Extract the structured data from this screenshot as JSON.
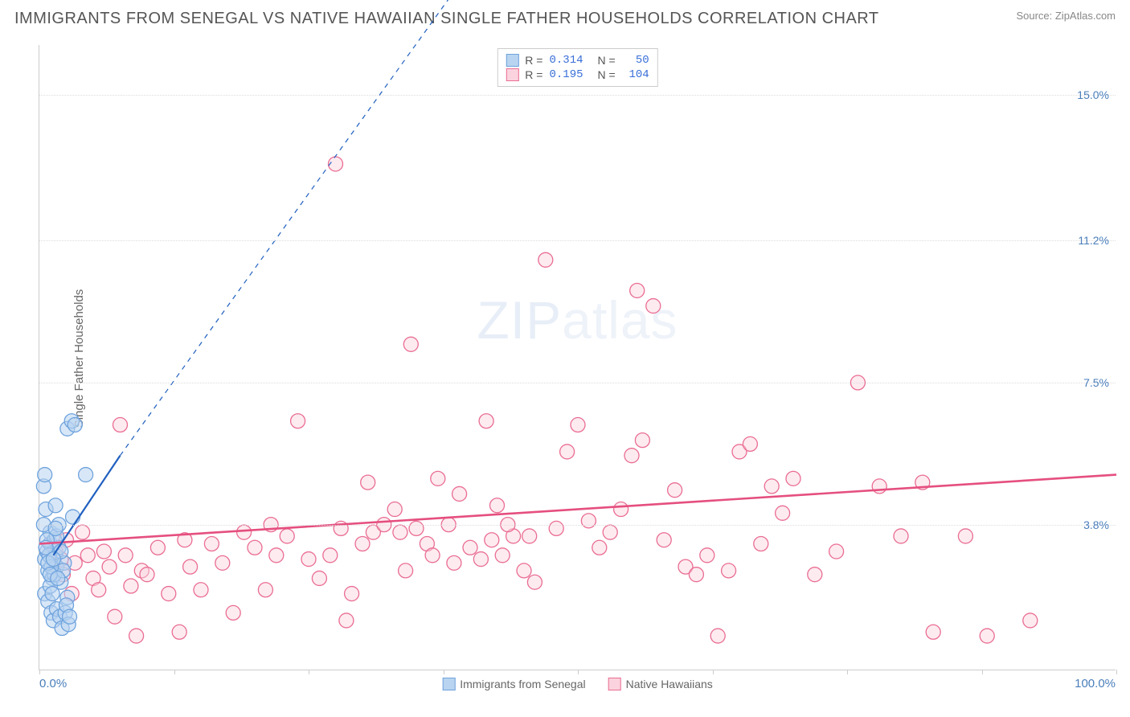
{
  "header": {
    "title": "IMMIGRANTS FROM SENEGAL VS NATIVE HAWAIIAN SINGLE FATHER HOUSEHOLDS CORRELATION CHART",
    "source": "Source: ZipAtlas.com"
  },
  "ylabel": "Single Father Households",
  "watermark": {
    "bold": "ZIP",
    "thin": "atlas"
  },
  "chart": {
    "type": "scatter",
    "background_color": "#ffffff",
    "grid_color": "#dddddd",
    "axis_color": "#cccccc",
    "tick_label_color": "#4a7ebb",
    "xlim": [
      0,
      100
    ],
    "ylim": [
      0,
      16.3
    ],
    "x_min_label": "0.0%",
    "x_max_label": "100.0%",
    "xtick_positions": [
      0,
      12.5,
      25,
      37.5,
      50,
      62.5,
      75,
      87.5,
      100
    ],
    "ytick_labels": [
      {
        "value": 3.8,
        "label": "3.8%"
      },
      {
        "value": 7.5,
        "label": "7.5%"
      },
      {
        "value": 11.2,
        "label": "11.2%"
      },
      {
        "value": 15.0,
        "label": "15.0%"
      }
    ],
    "marker_radius": 9,
    "marker_stroke_width": 1.3
  },
  "series": {
    "blue": {
      "name": "Immigrants from Senegal",
      "fill": "#b8d4f0",
      "stroke": "#6fa3dd",
      "fill_opacity": 0.55,
      "R": "0.314",
      "N": "50",
      "trend": {
        "x1": 1.3,
        "y1": 3.0,
        "x2": 7.5,
        "y2": 5.6,
        "solid_color": "#1f5fbf",
        "solid_width": 2.2,
        "dash_x2": 38,
        "dash_y2": 17.5,
        "dash": "6 6"
      },
      "points": [
        [
          0.5,
          2.9
        ],
        [
          0.7,
          3.1
        ],
        [
          0.8,
          2.6
        ],
        [
          1.0,
          3.3
        ],
        [
          1.2,
          2.4
        ],
        [
          1.0,
          3.6
        ],
        [
          1.5,
          3.0
        ],
        [
          1.4,
          3.4
        ],
        [
          1.6,
          2.7
        ],
        [
          1.8,
          3.2
        ],
        [
          0.6,
          4.2
        ],
        [
          0.5,
          2.0
        ],
        [
          0.8,
          1.8
        ],
        [
          1.1,
          1.5
        ],
        [
          1.3,
          1.3
        ],
        [
          1.6,
          1.6
        ],
        [
          1.9,
          1.4
        ],
        [
          2.1,
          1.1
        ],
        [
          2.4,
          1.5
        ],
        [
          2.7,
          1.2
        ],
        [
          2.0,
          2.3
        ],
        [
          2.3,
          2.8
        ],
        [
          2.6,
          1.9
        ],
        [
          0.4,
          4.8
        ],
        [
          0.5,
          5.1
        ],
        [
          2.6,
          6.3
        ],
        [
          3.0,
          6.5
        ],
        [
          3.3,
          6.4
        ],
        [
          4.3,
          5.1
        ],
        [
          1.5,
          4.3
        ],
        [
          1.0,
          2.2
        ],
        [
          1.2,
          2.0
        ],
        [
          1.4,
          2.5
        ],
        [
          1.6,
          3.5
        ],
        [
          1.8,
          3.8
        ],
        [
          2.0,
          3.1
        ],
        [
          2.2,
          2.6
        ],
        [
          0.7,
          3.4
        ],
        [
          0.9,
          3.0
        ],
        [
          1.1,
          2.7
        ],
        [
          0.4,
          3.8
        ],
        [
          0.6,
          3.2
        ],
        [
          0.8,
          2.8
        ],
        [
          1.0,
          2.5
        ],
        [
          1.3,
          2.9
        ],
        [
          1.5,
          3.7
        ],
        [
          1.7,
          2.4
        ],
        [
          2.5,
          1.7
        ],
        [
          2.8,
          1.4
        ],
        [
          3.1,
          4.0
        ]
      ]
    },
    "pink": {
      "name": "Native Hawaiians",
      "fill": "#fbd3de",
      "stroke": "#ea6d93",
      "fill_opacity": 0.45,
      "R": "0.195",
      "N": "104",
      "trend": {
        "x1": 0,
        "y1": 3.3,
        "x2": 100,
        "y2": 5.1,
        "solid_color": "#e54f7f",
        "solid_width": 2.6
      },
      "points": [
        [
          1.0,
          3.3
        ],
        [
          1.5,
          3.1
        ],
        [
          2.0,
          2.9
        ],
        [
          2.2,
          2.5
        ],
        [
          2.5,
          3.4
        ],
        [
          3.0,
          2.0
        ],
        [
          3.3,
          2.8
        ],
        [
          4.0,
          3.6
        ],
        [
          4.5,
          3.0
        ],
        [
          5.0,
          2.4
        ],
        [
          5.5,
          2.1
        ],
        [
          6.0,
          3.1
        ],
        [
          6.5,
          2.7
        ],
        [
          7.0,
          1.4
        ],
        [
          7.5,
          6.4
        ],
        [
          8.0,
          3.0
        ],
        [
          8.5,
          2.2
        ],
        [
          9.0,
          0.9
        ],
        [
          9.5,
          2.6
        ],
        [
          10.0,
          2.5
        ],
        [
          11.0,
          3.2
        ],
        [
          12.0,
          2.0
        ],
        [
          13.0,
          1.0
        ],
        [
          13.5,
          3.4
        ],
        [
          14.0,
          2.7
        ],
        [
          15.0,
          2.1
        ],
        [
          16.0,
          3.3
        ],
        [
          17.0,
          2.8
        ],
        [
          18.0,
          1.5
        ],
        [
          19.0,
          3.6
        ],
        [
          20.0,
          3.2
        ],
        [
          21.0,
          2.1
        ],
        [
          21.5,
          3.8
        ],
        [
          22.0,
          3.0
        ],
        [
          23.0,
          3.5
        ],
        [
          24.0,
          6.5
        ],
        [
          25.0,
          2.9
        ],
        [
          26.0,
          2.4
        ],
        [
          27.0,
          3.0
        ],
        [
          27.5,
          13.2
        ],
        [
          28.0,
          3.7
        ],
        [
          28.5,
          1.3
        ],
        [
          29.0,
          2.0
        ],
        [
          30.0,
          3.3
        ],
        [
          30.5,
          4.9
        ],
        [
          31.0,
          3.6
        ],
        [
          32.0,
          3.8
        ],
        [
          33.0,
          4.2
        ],
        [
          33.5,
          3.6
        ],
        [
          34.0,
          2.6
        ],
        [
          34.5,
          8.5
        ],
        [
          35.0,
          3.7
        ],
        [
          36.0,
          3.3
        ],
        [
          37.0,
          5.0
        ],
        [
          38.0,
          3.8
        ],
        [
          39.0,
          4.6
        ],
        [
          40.0,
          3.2
        ],
        [
          41.0,
          2.9
        ],
        [
          41.5,
          6.5
        ],
        [
          42.0,
          3.4
        ],
        [
          42.5,
          4.3
        ],
        [
          43.0,
          3.0
        ],
        [
          44.0,
          3.5
        ],
        [
          45.0,
          2.6
        ],
        [
          46.0,
          2.3
        ],
        [
          47.0,
          10.7
        ],
        [
          48.0,
          3.7
        ],
        [
          49.0,
          5.7
        ],
        [
          50.0,
          6.4
        ],
        [
          51.0,
          3.9
        ],
        [
          52.0,
          3.2
        ],
        [
          53.0,
          3.6
        ],
        [
          54.0,
          4.2
        ],
        [
          55.0,
          5.6
        ],
        [
          55.5,
          9.9
        ],
        [
          56.0,
          6.0
        ],
        [
          57.0,
          9.5
        ],
        [
          58.0,
          3.4
        ],
        [
          59.0,
          4.7
        ],
        [
          60.0,
          2.7
        ],
        [
          61.0,
          2.5
        ],
        [
          62.0,
          3.0
        ],
        [
          63.0,
          0.9
        ],
        [
          64.0,
          2.6
        ],
        [
          65.0,
          5.7
        ],
        [
          66.0,
          5.9
        ],
        [
          67.0,
          3.3
        ],
        [
          68.0,
          4.8
        ],
        [
          69.0,
          4.1
        ],
        [
          70.0,
          5.0
        ],
        [
          72.0,
          2.5
        ],
        [
          74.0,
          3.1
        ],
        [
          76.0,
          7.5
        ],
        [
          78.0,
          4.8
        ],
        [
          80.0,
          3.5
        ],
        [
          82.0,
          4.9
        ],
        [
          83.0,
          1.0
        ],
        [
          86.0,
          3.5
        ],
        [
          88.0,
          0.9
        ],
        [
          92.0,
          1.3
        ],
        [
          43.5,
          3.8
        ],
        [
          45.5,
          3.5
        ],
        [
          36.5,
          3.0
        ],
        [
          38.5,
          2.8
        ]
      ]
    }
  },
  "bottom_legend": [
    {
      "swatch_fill": "#b8d4f0",
      "swatch_stroke": "#6fa3dd",
      "label_key": "series.blue.name"
    },
    {
      "swatch_fill": "#fbd3de",
      "swatch_stroke": "#ea6d93",
      "label_key": "series.pink.name"
    }
  ]
}
